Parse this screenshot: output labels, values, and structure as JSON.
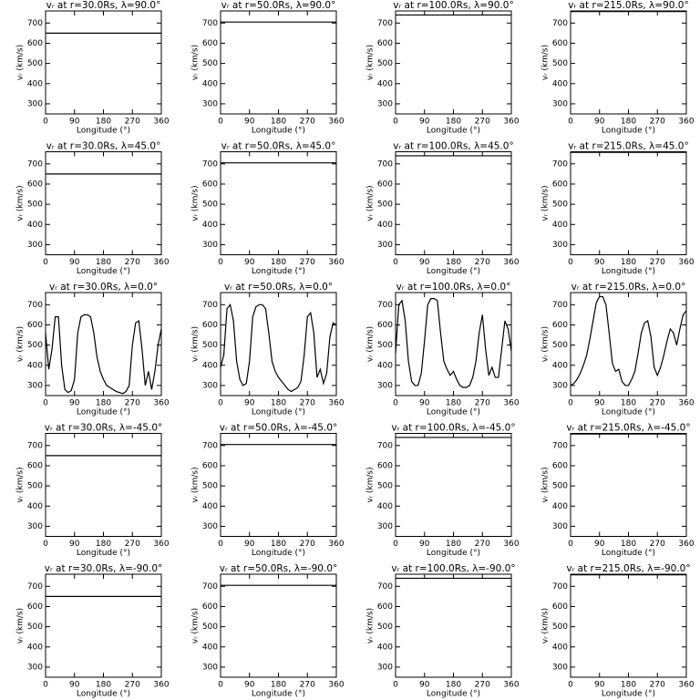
{
  "chart_data": [
    {
      "type": "line",
      "title": "vᵣ at r=30.0Rs, λ=90.0°",
      "xlabel": "Longitude (°)",
      "ylabel": "vᵣ (km/s)",
      "x": [
        0,
        360
      ],
      "values": [
        650,
        650
      ],
      "color": "#000000",
      "xlim": [
        0,
        360
      ],
      "ylim": [
        250,
        760
      ],
      "xticks": [
        0,
        90,
        180,
        270,
        360
      ],
      "yticks": [
        300,
        400,
        500,
        600,
        700
      ]
    },
    {
      "type": "line",
      "title": "vᵣ at r=50.0Rs, λ=90.0°",
      "xlabel": "Longitude (°)",
      "ylabel": "vᵣ (km/s)",
      "x": [
        0,
        360
      ],
      "values": [
        705,
        705
      ],
      "color": "#000000",
      "xlim": [
        0,
        360
      ],
      "ylim": [
        250,
        760
      ],
      "xticks": [
        0,
        90,
        180,
        270,
        360
      ],
      "yticks": [
        300,
        400,
        500,
        600,
        700
      ]
    },
    {
      "type": "line",
      "title": "vᵣ at r=100.0Rs, λ=90.0°",
      "xlabel": "Longitude (°)",
      "ylabel": "vᵣ (km/s)",
      "x": [
        0,
        360
      ],
      "values": [
        740,
        740
      ],
      "color": "#000000",
      "xlim": [
        0,
        360
      ],
      "ylim": [
        250,
        760
      ],
      "xticks": [
        0,
        90,
        180,
        270,
        360
      ],
      "yticks": [
        300,
        400,
        500,
        600,
        700
      ]
    },
    {
      "type": "line",
      "title": "vᵣ at r=215.0Rs, λ=90.0°",
      "xlabel": "Longitude (°)",
      "ylabel": "vᵣ (km/s)",
      "x": [
        0,
        360
      ],
      "values": [
        757,
        757
      ],
      "color": "#000000",
      "xlim": [
        0,
        360
      ],
      "ylim": [
        250,
        760
      ],
      "xticks": [
        0,
        90,
        180,
        270,
        360
      ],
      "yticks": [
        300,
        400,
        500,
        600,
        700
      ]
    },
    {
      "type": "line",
      "title": "vᵣ at r=30.0Rs, λ=45.0°",
      "xlabel": "Longitude (°)",
      "ylabel": "vᵣ (km/s)",
      "x": [
        0,
        360
      ],
      "values": [
        650,
        650
      ],
      "color": "#000000",
      "xlim": [
        0,
        360
      ],
      "ylim": [
        250,
        760
      ],
      "xticks": [
        0,
        90,
        180,
        270,
        360
      ],
      "yticks": [
        300,
        400,
        500,
        600,
        700
      ]
    },
    {
      "type": "line",
      "title": "vᵣ at r=50.0Rs, λ=45.0°",
      "xlabel": "Longitude (°)",
      "ylabel": "vᵣ (km/s)",
      "x": [
        0,
        360
      ],
      "values": [
        705,
        705
      ],
      "color": "#000000",
      "xlim": [
        0,
        360
      ],
      "ylim": [
        250,
        760
      ],
      "xticks": [
        0,
        90,
        180,
        270,
        360
      ],
      "yticks": [
        300,
        400,
        500,
        600,
        700
      ]
    },
    {
      "type": "line",
      "title": "vᵣ at r=100.0Rs, λ=45.0°",
      "xlabel": "Longitude (°)",
      "ylabel": "vᵣ (km/s)",
      "x": [
        0,
        360
      ],
      "values": [
        740,
        740
      ],
      "color": "#000000",
      "xlim": [
        0,
        360
      ],
      "ylim": [
        250,
        760
      ],
      "xticks": [
        0,
        90,
        180,
        270,
        360
      ],
      "yticks": [
        300,
        400,
        500,
        600,
        700
      ]
    },
    {
      "type": "line",
      "title": "vᵣ at r=215.0Rs, λ=45.0°",
      "xlabel": "Longitude (°)",
      "ylabel": "vᵣ (km/s)",
      "x": [
        0,
        360
      ],
      "values": [
        757,
        757
      ],
      "color": "#000000",
      "xlim": [
        0,
        360
      ],
      "ylim": [
        250,
        760
      ],
      "xticks": [
        0,
        90,
        180,
        270,
        360
      ],
      "yticks": [
        300,
        400,
        500,
        600,
        700
      ]
    },
    {
      "type": "line",
      "title": "vᵣ at r=30.0Rs, λ=0.0°",
      "xlabel": "Longitude (°)",
      "ylabel": "vᵣ (km/s)",
      "x": [
        0,
        10,
        20,
        30,
        40,
        50,
        60,
        70,
        80,
        90,
        100,
        110,
        120,
        130,
        140,
        150,
        160,
        170,
        180,
        190,
        200,
        210,
        220,
        230,
        240,
        250,
        260,
        270,
        280,
        290,
        300,
        310,
        320,
        330,
        340,
        350,
        360
      ],
      "values": [
        560,
        380,
        480,
        640,
        640,
        400,
        280,
        265,
        275,
        330,
        560,
        640,
        650,
        650,
        640,
        560,
        440,
        370,
        330,
        300,
        290,
        280,
        270,
        265,
        260,
        270,
        300,
        500,
        610,
        620,
        480,
        300,
        370,
        280,
        370,
        500,
        580
      ],
      "color": "#000000",
      "xlim": [
        0,
        360
      ],
      "ylim": [
        250,
        760
      ],
      "xticks": [
        0,
        90,
        180,
        270,
        360
      ],
      "yticks": [
        300,
        400,
        500,
        600,
        700
      ]
    },
    {
      "type": "line",
      "title": "vᵣ at r=50.0Rs, λ=0.0°",
      "xlabel": "Longitude (°)",
      "ylabel": "vᵣ (km/s)",
      "x": [
        0,
        10,
        20,
        30,
        40,
        50,
        60,
        70,
        80,
        90,
        100,
        110,
        120,
        130,
        140,
        150,
        160,
        170,
        180,
        190,
        200,
        210,
        220,
        230,
        240,
        250,
        260,
        270,
        280,
        290,
        300,
        310,
        320,
        330,
        340,
        350,
        360
      ],
      "values": [
        390,
        450,
        680,
        700,
        620,
        420,
        330,
        300,
        310,
        420,
        640,
        690,
        700,
        700,
        680,
        560,
        420,
        370,
        340,
        320,
        300,
        280,
        270,
        280,
        290,
        320,
        450,
        640,
        660,
        560,
        340,
        380,
        310,
        360,
        540,
        610,
        600
      ],
      "color": "#000000",
      "xlim": [
        0,
        360
      ],
      "ylim": [
        250,
        760
      ],
      "xticks": [
        0,
        90,
        180,
        270,
        360
      ],
      "yticks": [
        300,
        400,
        500,
        600,
        700
      ]
    },
    {
      "type": "line",
      "title": "vᵣ at r=100.0Rs, λ=0.0°",
      "xlabel": "Longitude (°)",
      "ylabel": "vᵣ (km/s)",
      "x": [
        0,
        10,
        20,
        30,
        40,
        50,
        60,
        70,
        80,
        90,
        100,
        110,
        120,
        130,
        140,
        150,
        160,
        170,
        180,
        190,
        200,
        210,
        220,
        230,
        240,
        250,
        260,
        270,
        280,
        290,
        300,
        310,
        320,
        330,
        340,
        350,
        360
      ],
      "values": [
        460,
        700,
        720,
        620,
        420,
        320,
        300,
        300,
        360,
        520,
        700,
        730,
        730,
        720,
        560,
        420,
        380,
        350,
        370,
        330,
        300,
        290,
        290,
        300,
        340,
        420,
        560,
        650,
        480,
        350,
        390,
        340,
        340,
        480,
        620,
        580,
        470
      ],
      "color": "#000000",
      "xlim": [
        0,
        360
      ],
      "ylim": [
        250,
        760
      ],
      "xticks": [
        0,
        90,
        180,
        270,
        360
      ],
      "yticks": [
        300,
        400,
        500,
        600,
        700
      ]
    },
    {
      "type": "line",
      "title": "vᵣ at r=215.0Rs, λ=0.0°",
      "xlabel": "Longitude (°)",
      "ylabel": "vᵣ (km/s)",
      "x": [
        0,
        10,
        20,
        30,
        40,
        50,
        60,
        70,
        80,
        90,
        100,
        110,
        120,
        130,
        140,
        150,
        160,
        170,
        180,
        190,
        200,
        210,
        220,
        230,
        240,
        250,
        260,
        270,
        280,
        290,
        300,
        310,
        320,
        330,
        340,
        350,
        360
      ],
      "values": [
        300,
        310,
        330,
        360,
        400,
        450,
        530,
        620,
        710,
        740,
        740,
        700,
        560,
        410,
        370,
        380,
        320,
        300,
        300,
        330,
        370,
        460,
        560,
        610,
        620,
        540,
        390,
        350,
        390,
        450,
        520,
        580,
        560,
        500,
        580,
        650,
        670
      ],
      "color": "#000000",
      "xlim": [
        0,
        360
      ],
      "ylim": [
        250,
        760
      ],
      "xticks": [
        0,
        90,
        180,
        270,
        360
      ],
      "yticks": [
        300,
        400,
        500,
        600,
        700
      ]
    },
    {
      "type": "line",
      "title": "vᵣ at r=30.0Rs, λ=-45.0°",
      "xlabel": "Longitude (°)",
      "ylabel": "vᵣ (km/s)",
      "x": [
        0,
        360
      ],
      "values": [
        650,
        650
      ],
      "color": "#000000",
      "xlim": [
        0,
        360
      ],
      "ylim": [
        250,
        760
      ],
      "xticks": [
        0,
        90,
        180,
        270,
        360
      ],
      "yticks": [
        300,
        400,
        500,
        600,
        700
      ]
    },
    {
      "type": "line",
      "title": "vᵣ at r=50.0Rs, λ=-45.0°",
      "xlabel": "Longitude (°)",
      "ylabel": "vᵣ (km/s)",
      "x": [
        0,
        360
      ],
      "values": [
        705,
        705
      ],
      "color": "#000000",
      "xlim": [
        0,
        360
      ],
      "ylim": [
        250,
        760
      ],
      "xticks": [
        0,
        90,
        180,
        270,
        360
      ],
      "yticks": [
        300,
        400,
        500,
        600,
        700
      ]
    },
    {
      "type": "line",
      "title": "vᵣ at r=100.0Rs, λ=-45.0°",
      "xlabel": "Longitude (°)",
      "ylabel": "vᵣ (km/s)",
      "x": [
        0,
        360
      ],
      "values": [
        740,
        740
      ],
      "color": "#000000",
      "xlim": [
        0,
        360
      ],
      "ylim": [
        250,
        760
      ],
      "xticks": [
        0,
        90,
        180,
        270,
        360
      ],
      "yticks": [
        300,
        400,
        500,
        600,
        700
      ]
    },
    {
      "type": "line",
      "title": "vᵣ at r=215.0Rs, λ=-45.0°",
      "xlabel": "Longitude (°)",
      "ylabel": "vᵣ (km/s)",
      "x": [
        0,
        360
      ],
      "values": [
        757,
        757
      ],
      "color": "#000000",
      "xlim": [
        0,
        360
      ],
      "ylim": [
        250,
        760
      ],
      "xticks": [
        0,
        90,
        180,
        270,
        360
      ],
      "yticks": [
        300,
        400,
        500,
        600,
        700
      ]
    },
    {
      "type": "line",
      "title": "vᵣ at r=30.0Rs, λ=-90.0°",
      "xlabel": "Longitude (°)",
      "ylabel": "vᵣ (km/s)",
      "x": [
        0,
        360
      ],
      "values": [
        650,
        650
      ],
      "color": "#000000",
      "xlim": [
        0,
        360
      ],
      "ylim": [
        250,
        760
      ],
      "xticks": [
        0,
        90,
        180,
        270,
        360
      ],
      "yticks": [
        300,
        400,
        500,
        600,
        700
      ]
    },
    {
      "type": "line",
      "title": "vᵣ at r=50.0Rs, λ=-90.0°",
      "xlabel": "Longitude (°)",
      "ylabel": "vᵣ (km/s)",
      "x": [
        0,
        360
      ],
      "values": [
        705,
        705
      ],
      "color": "#000000",
      "xlim": [
        0,
        360
      ],
      "ylim": [
        250,
        760
      ],
      "xticks": [
        0,
        90,
        180,
        270,
        360
      ],
      "yticks": [
        300,
        400,
        500,
        600,
        700
      ]
    },
    {
      "type": "line",
      "title": "vᵣ at r=100.0Rs, λ=-90.0°",
      "xlabel": "Longitude (°)",
      "ylabel": "vᵣ (km/s)",
      "x": [
        0,
        360
      ],
      "values": [
        740,
        740
      ],
      "color": "#000000",
      "xlim": [
        0,
        360
      ],
      "ylim": [
        250,
        760
      ],
      "xticks": [
        0,
        90,
        180,
        270,
        360
      ],
      "yticks": [
        300,
        400,
        500,
        600,
        700
      ]
    },
    {
      "type": "line",
      "title": "vᵣ at r=215.0Rs, λ=-90.0°",
      "xlabel": "Longitude (°)",
      "ylabel": "vᵣ (km/s)",
      "x": [
        0,
        360
      ],
      "values": [
        757,
        757
      ],
      "color": "#000000",
      "xlim": [
        0,
        360
      ],
      "ylim": [
        250,
        760
      ],
      "xticks": [
        0,
        90,
        180,
        270,
        360
      ],
      "yticks": [
        300,
        400,
        500,
        600,
        700
      ]
    }
  ]
}
